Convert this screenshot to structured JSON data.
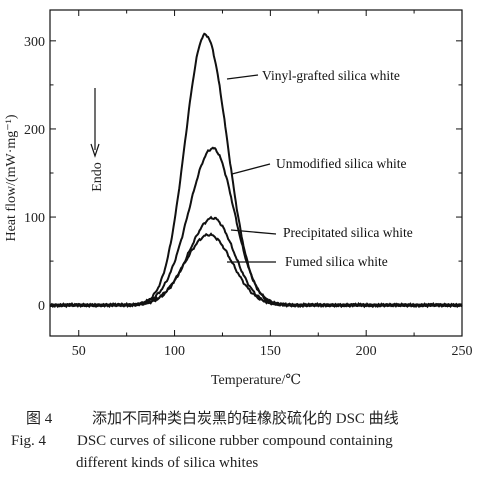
{
  "chart_data": {
    "type": "line",
    "xlabel": "Temperature/℃",
    "ylabel": "Heat flow/(mW·mg⁻¹)",
    "xlim": [
      35,
      250
    ],
    "ylim": [
      -35,
      335
    ],
    "xticks": [
      50,
      100,
      150,
      200,
      250
    ],
    "yticks": [
      0,
      100,
      200,
      300
    ],
    "annotation": "Endo",
    "series": [
      {
        "name": "Vinyl-grafted silica white",
        "peak_x": 116,
        "peak_y": 307,
        "sigma_left": 10.5,
        "sigma_right": 11.5
      },
      {
        "name": "Unmodified silica white",
        "peak_x": 120,
        "peak_y": 178,
        "sigma_left": 12.5,
        "sigma_right": 11.0
      },
      {
        "name": "Precipitated silica white",
        "peak_x": 120,
        "peak_y": 99,
        "sigma_left": 12.5,
        "sigma_right": 11.0
      },
      {
        "name": "Fumed silica white",
        "peak_x": 118,
        "peak_y": 80,
        "sigma_left": 12.5,
        "sigma_right": 12.0
      }
    ],
    "baseline": 0
  },
  "caption": {
    "cn_num": "图 4",
    "cn_text": "添加不同种类白炭黑的硅橡胶硫化的 DSC 曲线",
    "en_num": "Fig. 4",
    "en_text_1": "DSC curves of silicone rubber compound containing",
    "en_text_2": "different kinds of silica whites"
  }
}
